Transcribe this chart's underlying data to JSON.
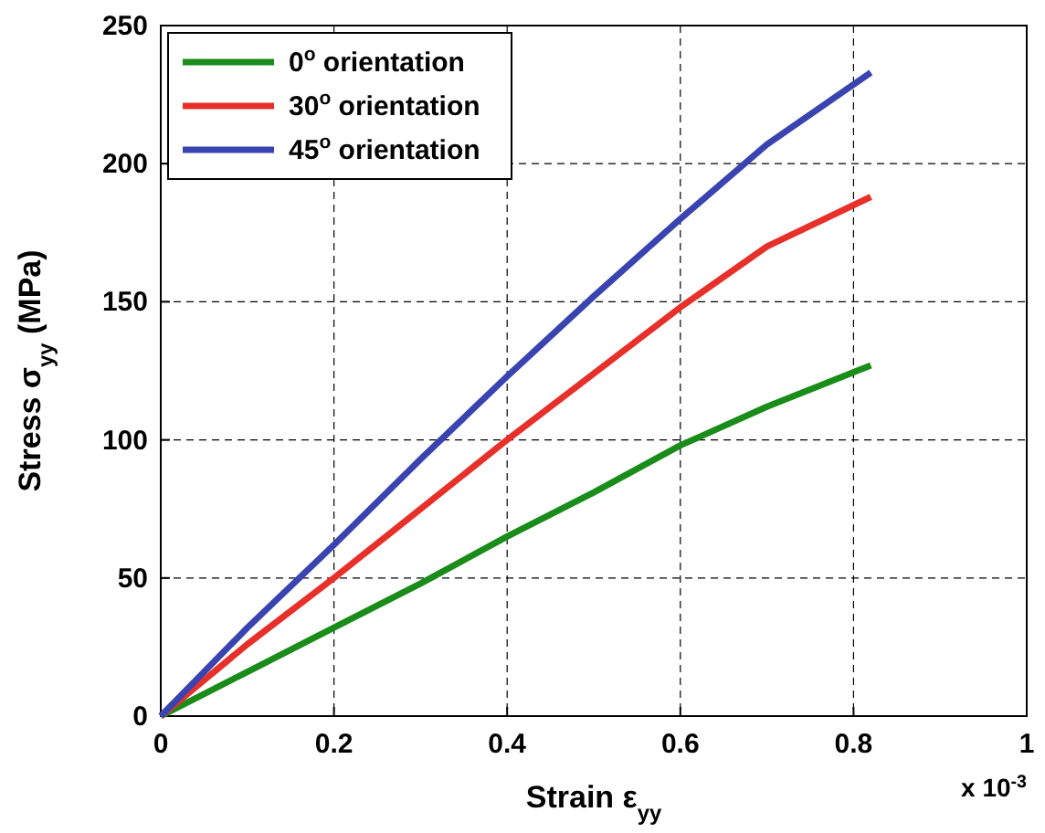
{
  "chart_data": {
    "type": "line",
    "xlabel": "Strain ε$_{yy}$",
    "ylabel": "Stress σ$_{yy}$ (MPa)",
    "annotations": [
      "x 10$^{-3}$"
    ],
    "xlim": [
      0,
      1
    ],
    "xticks": [
      0,
      0.2,
      0.4,
      0.6,
      0.8,
      1
    ],
    "ylim": [
      0,
      250
    ],
    "yticks": [
      0,
      50,
      100,
      150,
      200,
      250
    ],
    "grid": true,
    "legend": "top left",
    "line_style": "solid",
    "series": [
      {
        "name": "0$^{o}$ orientation",
        "color": "#1a8c1a",
        "x": [
          0,
          0.1,
          0.2,
          0.3,
          0.4,
          0.5,
          0.6,
          0.7,
          0.82
        ],
        "values": [
          0,
          16,
          32,
          48,
          65,
          81,
          98,
          112,
          127
        ]
      },
      {
        "name": "30$^{o}$ orientation",
        "color": "#e8302a",
        "x": [
          0,
          0.1,
          0.2,
          0.3,
          0.4,
          0.5,
          0.6,
          0.7,
          0.82
        ],
        "values": [
          0,
          26,
          50,
          75,
          100,
          124,
          148,
          170,
          188
        ]
      },
      {
        "name": "45$^{o}$ orientation",
        "color": "#3a44b0",
        "x": [
          0,
          0.1,
          0.2,
          0.3,
          0.4,
          0.5,
          0.6,
          0.7,
          0.82
        ],
        "values": [
          0,
          32,
          62,
          93,
          123,
          152,
          180,
          207,
          233
        ]
      }
    ]
  }
}
